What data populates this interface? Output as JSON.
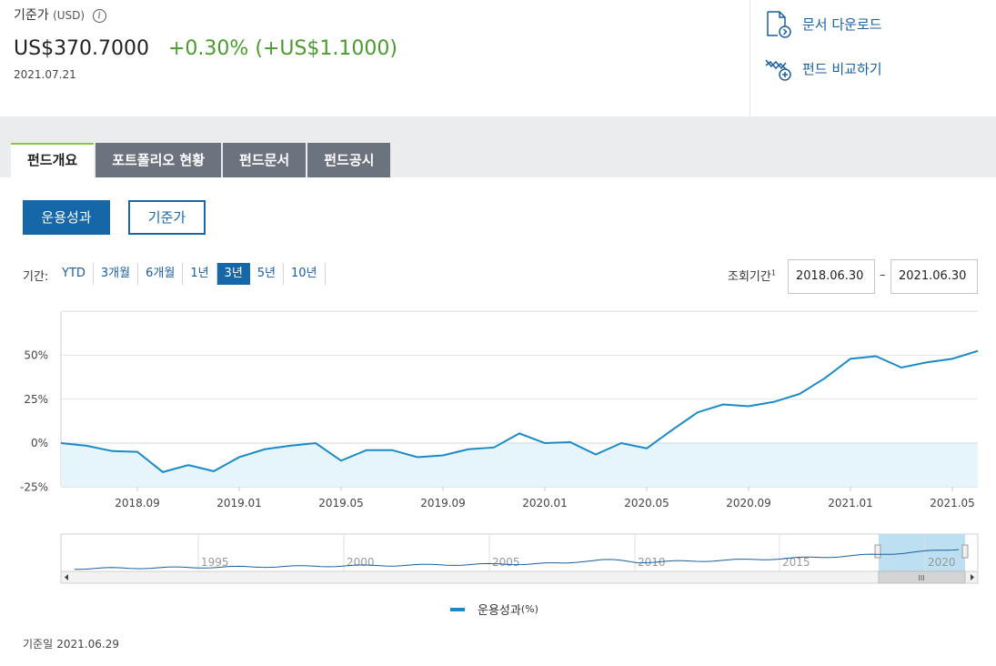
{
  "header": {
    "nav_label": "기준가",
    "nav_unit": "(USD)",
    "info_glyph": "i",
    "nav_value": "US$370.7000",
    "change_pct": "+0.30%",
    "change_abs": "(+US$1.1000)",
    "nav_date": "2021.07.21",
    "download_label": "문서 다운로드",
    "compare_label": "펀드 비교하기",
    "colors": {
      "positive": "#4a9a2d",
      "link": "#1a5fa0"
    }
  },
  "tabs": [
    {
      "label": "펀드개요",
      "active": true
    },
    {
      "label": "포트폴리오 현황"
    },
    {
      "label": "펀드문서"
    },
    {
      "label": "펀드공시"
    }
  ],
  "toggle": {
    "performance": "운용성과",
    "nav": "기준가"
  },
  "period": {
    "label": "기간:",
    "options": [
      "YTD",
      "3개월",
      "6개월",
      "1년",
      "3년",
      "5년",
      "10년"
    ],
    "selected": "3년",
    "range_label": "조회기간",
    "range_footnote": "1",
    "from": "2018.06.30",
    "sep": "–",
    "to": "2021.06.30"
  },
  "chart_data": {
    "type": "area",
    "series": [
      {
        "name": "운용성과",
        "color": "#1a8ac6",
        "x": [
          "2018.06",
          "2018.07",
          "2018.08",
          "2018.09",
          "2018.10",
          "2018.11",
          "2018.12",
          "2019.01",
          "2019.02",
          "2019.03",
          "2019.04",
          "2019.05",
          "2019.06",
          "2019.07",
          "2019.08",
          "2019.09",
          "2019.10",
          "2019.11",
          "2019.12",
          "2020.01",
          "2020.02",
          "2020.03",
          "2020.04",
          "2020.05",
          "2020.06",
          "2020.07",
          "2020.08",
          "2020.09",
          "2020.10",
          "2020.11",
          "2020.12",
          "2021.01",
          "2021.02",
          "2021.03",
          "2021.04",
          "2021.05",
          "2021.06"
        ],
        "values": [
          0,
          -1.5,
          -4.5,
          -5,
          -16.5,
          -12.5,
          -16,
          -8,
          -3.5,
          -1.5,
          0,
          -10,
          -4,
          -4,
          -8,
          -7,
          -3.5,
          -2.5,
          5.5,
          0,
          0.5,
          -6.5,
          0,
          -3,
          7.5,
          17.5,
          22,
          21,
          23.5,
          28,
          37,
          48,
          49.5,
          43,
          46,
          48,
          52.5
        ]
      }
    ],
    "y_ticks": [
      "50%",
      "25%",
      "0%",
      "-25%"
    ],
    "y_tick_values": [
      50,
      25,
      0,
      -25
    ],
    "x_ticks": [
      "2018.09",
      "2019.01",
      "2019.05",
      "2019.09",
      "2020.01",
      "2020.05",
      "2020.09",
      "2021.01",
      "2021.05"
    ],
    "ylim": [
      -25,
      75
    ],
    "grid": true,
    "navigator_ticks": [
      "1995",
      "2000",
      "2005",
      "2010",
      "2015",
      "2020"
    ],
    "navigator_scroll_glyph": "III",
    "legend_label": "운용성과",
    "legend_unit": "(%)"
  },
  "footer": {
    "base_date_label": "기준일",
    "base_date": "2021.06.29"
  }
}
